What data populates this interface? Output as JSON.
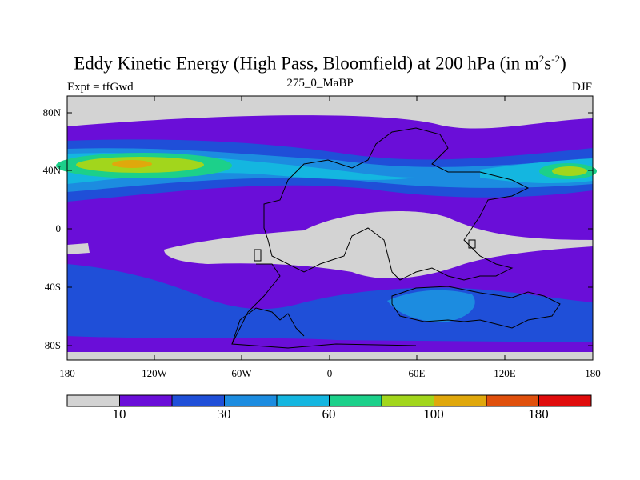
{
  "title_main": "Eddy Kinetic Energy (High Pass, Bloomfield) at 200 hPa (in m",
  "title_sup1": "2",
  "title_mid": "s",
  "title_sup2": "-2",
  "title_end": ")",
  "subtitle_left": "Expt = tfGwd",
  "subtitle_center": "275_0_MaBP",
  "subtitle_right": "DJF",
  "y_ticks": [
    "80N",
    "40N",
    "0",
    "40S",
    "80S"
  ],
  "x_ticks": [
    "180",
    "120W",
    "60W",
    "0",
    "60E",
    "120E",
    "180"
  ],
  "colorbar": {
    "colors": [
      "#d3d3d3",
      "#6a0ed8",
      "#1f4fd8",
      "#1c8ce0",
      "#14b6e0",
      "#1cd08a",
      "#a2d61c",
      "#e0a80c",
      "#e0500c",
      "#e00c0c"
    ],
    "labels": [
      "10",
      "30",
      "60",
      "100",
      "180"
    ]
  }
}
